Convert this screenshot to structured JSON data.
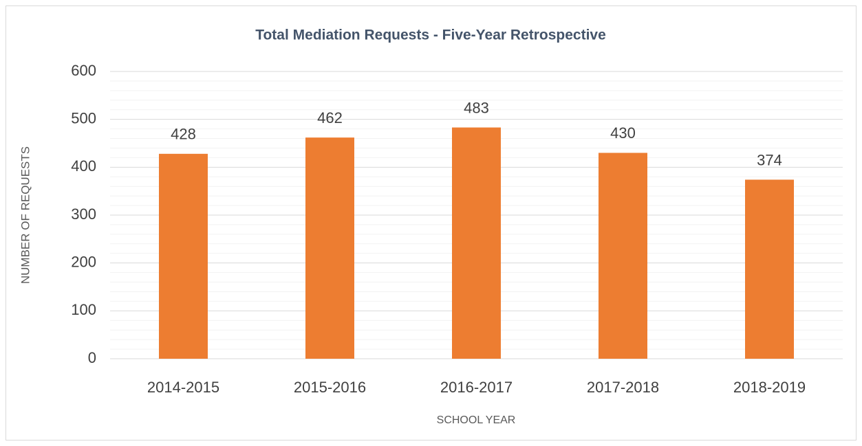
{
  "chart_data": {
    "type": "bar",
    "title": "Total Mediation Requests - Five-Year Retrospective",
    "x_label": "SCHOOL YEAR",
    "y_label": "NUMBER OF REQUESTS",
    "categories": [
      "2014-2015",
      "2015-2016",
      "2016-2017",
      "2017-2018",
      "2018-2019"
    ],
    "values": [
      428,
      462,
      483,
      430,
      374
    ],
    "color": "#ed7d31",
    "ylim": [
      0,
      600
    ],
    "yticks": [
      0,
      100,
      200,
      300,
      400,
      500,
      600
    ],
    "grid": true
  }
}
